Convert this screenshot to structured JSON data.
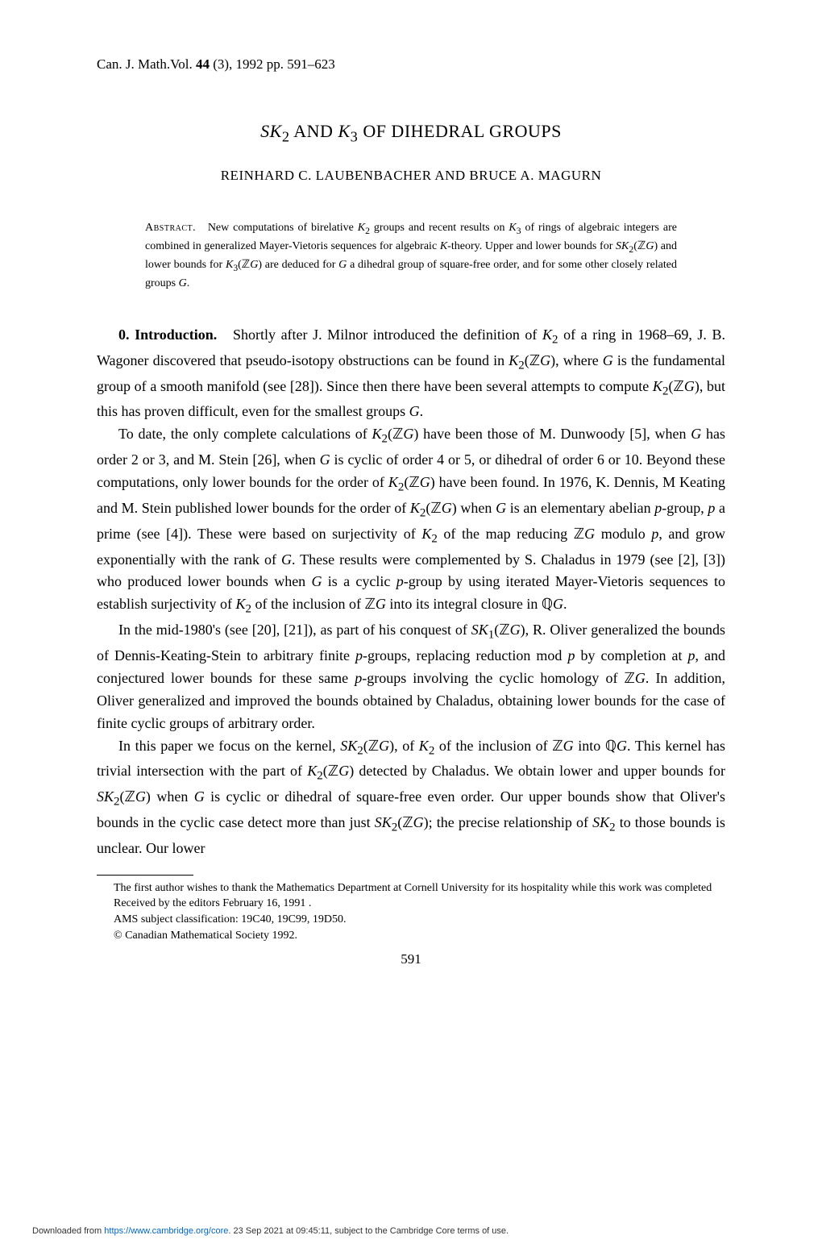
{
  "journal": {
    "name": "Can. J. Math.",
    "volume": "44",
    "issue": "3",
    "year": "1992",
    "pages": "591–623"
  },
  "title": {
    "prefix_italic": "SK",
    "sub1": "2",
    "mid": " AND ",
    "k_italic": "K",
    "sub2": "3",
    "suffix": " OF DIHEDRAL GROUPS"
  },
  "authors": "REINHARD C. LAUBENBACHER AND BRUCE A. MAGURN",
  "abstract": {
    "label": "Abstract.",
    "text": "New computations of birelative K₂ groups and recent results on K₃ of rings of algebraic integers are combined in generalized Mayer-Vietoris sequences for algebraic K-theory. Upper and lower bounds for SK₂(ℤG) and lower bounds for K₃(ℤG) are deduced for G a dihedral group of square-free order, and for some other closely related groups G."
  },
  "introduction": {
    "number": "0.",
    "heading": "Introduction.",
    "para1": "Shortly after J. Milnor introduced the definition of K₂ of a ring in 1968–69, J. B. Wagoner discovered that pseudo-isotopy obstructions can be found in K₂(ℤG), where G is the fundamental group of a smooth manifold (see [28]). Since then there have been several attempts to compute K₂(ℤG), but this has proven difficult, even for the smallest groups G.",
    "para2": "To date, the only complete calculations of K₂(ℤG) have been those of M. Dunwoody [5], when G has order 2 or 3, and M. Stein [26], when G is cyclic of order 4 or 5, or dihedral of order 6 or 10. Beyond these computations, only lower bounds for the order of K₂(ℤG) have been found. In 1976, K. Dennis, M Keating and M. Stein published lower bounds for the order of K₂(ℤG) when G is an elementary abelian p-group, p a prime (see [4]). These were based on surjectivity of K₂ of the map reducing ℤG modulo p, and grow exponentially with the rank of G. These results were complemented by S. Chaladus in 1979 (see [2], [3]) who produced lower bounds when G is a cyclic p-group by using iterated Mayer-Vietoris sequences to establish surjectivity of K₂ of the inclusion of ℤG into its integral closure in ℚG.",
    "para3": "In the mid-1980's (see [20], [21]), as part of his conquest of SK₁(ℤG), R. Oliver generalized the bounds of Dennis-Keating-Stein to arbitrary finite p-groups, replacing reduction mod p by completion at p, and conjectured lower bounds for these same p-groups involving the cyclic homology of ℤG. In addition, Oliver generalized and improved the bounds obtained by Chaladus, obtaining lower bounds for the case of finite cyclic groups of arbitrary order.",
    "para4": "In this paper we focus on the kernel, SK₂(ℤG), of K₂ of the inclusion of ℤG into ℚG. This kernel has trivial intersection with the part of K₂(ℤG) detected by Chaladus. We obtain lower and upper bounds for SK₂(ℤG) when G is cyclic or dihedral of square-free even order. Our upper bounds show that Oliver's bounds in the cyclic case detect more than just SK₂(ℤG); the precise relationship of SK₂ to those bounds is unclear. Our lower"
  },
  "footnotes": {
    "acknowledgment": "The first author wishes to thank the Mathematics Department at Cornell University for its hospitality while this work was completed",
    "received": "Received by the editors February 16, 1991 .",
    "ams": "AMS subject classification: 19C40, 19C99, 19D50.",
    "copyright": "© Canadian Mathematical Society 1992."
  },
  "pageNumber": "591",
  "downloadNote": {
    "prefix": "Downloaded from ",
    "url": "https://www.cambridge.org/core",
    "suffix": ". 23 Sep 2021 at 09:45:11, subject to the Cambridge Core terms of use."
  }
}
